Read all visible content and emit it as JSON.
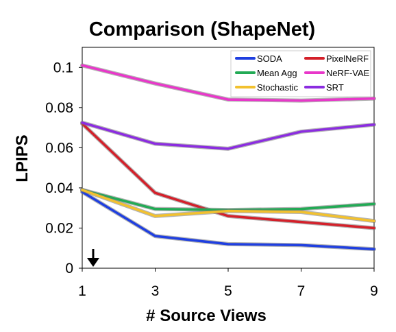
{
  "chart_data": {
    "type": "line",
    "title": "Comparison (ShapeNet)",
    "xlabel": "# Source Views",
    "ylabel": "LPIPS",
    "x": [
      1,
      3,
      5,
      7,
      9
    ],
    "xticks": [
      "1",
      "3",
      "5",
      "7",
      "9"
    ],
    "yticks": [
      "0",
      "0.02",
      "0.04",
      "0.06",
      "0.08",
      "0.1"
    ],
    "xlim": [
      1,
      9
    ],
    "ylim": [
      0,
      0.11
    ],
    "grid": false,
    "legend_position": "top-right",
    "annotation": "down-arrow (lower is better)",
    "series": [
      {
        "name": "SODA",
        "color": "#1f3fe0",
        "values": [
          0.038,
          0.016,
          0.012,
          0.0115,
          0.0095
        ]
      },
      {
        "name": "PixelNeRF",
        "color": "#d4202a",
        "values": [
          0.072,
          0.0375,
          0.026,
          0.023,
          0.02
        ]
      },
      {
        "name": "Mean Agg",
        "color": "#22aa55",
        "values": [
          0.039,
          0.0295,
          0.029,
          0.0295,
          0.032
        ]
      },
      {
        "name": "NeRF-VAE",
        "color": "#e837c9",
        "values": [
          0.101,
          0.092,
          0.084,
          0.0835,
          0.0845
        ]
      },
      {
        "name": "Stochastic",
        "color": "#f2c12e",
        "values": [
          0.039,
          0.026,
          0.0285,
          0.028,
          0.0235
        ]
      },
      {
        "name": "SRT",
        "color": "#8b2ce0",
        "values": [
          0.0725,
          0.062,
          0.0595,
          0.068,
          0.0715
        ]
      }
    ],
    "legend_order": [
      "SODA",
      "PixelNeRF",
      "Mean Agg",
      "NeRF-VAE",
      "Stochastic",
      "SRT"
    ]
  }
}
